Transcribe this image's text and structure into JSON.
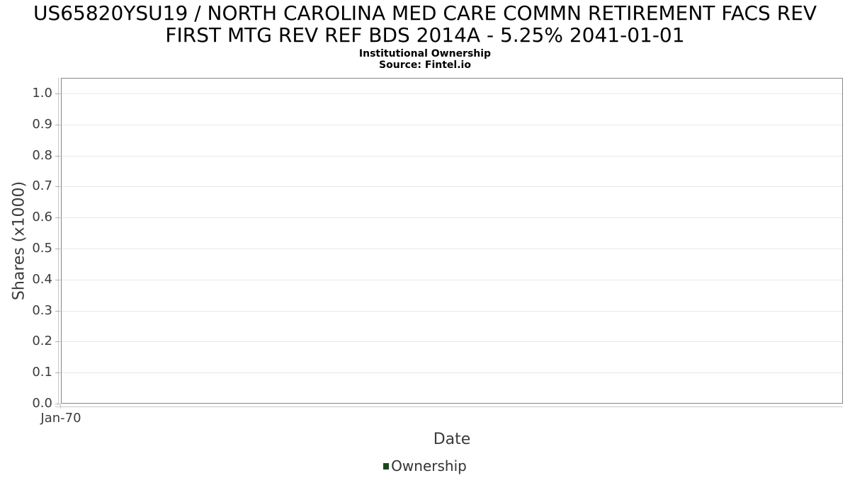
{
  "header": {
    "title_line1": "US65820YSU19 / NORTH CAROLINA MED CARE COMMN RETIREMENT FACS REV",
    "title_line2": "FIRST MTG REV REF BDS 2014A - 5.25% 2041-01-01",
    "subtitle": "Institutional Ownership",
    "source": "Source: Fintel.io"
  },
  "chart_data": {
    "type": "line",
    "title": "US65820YSU19 / NORTH CAROLINA MED CARE COMMN RETIREMENT FACS REV FIRST MTG REV REF BDS 2014A - 5.25% 2041-01-01",
    "subtitle": "Institutional Ownership",
    "source": "Source: Fintel.io",
    "xlabel": "Date",
    "ylabel": "Shares (x1000)",
    "x_tick_labels": [
      "Jan-70"
    ],
    "y_tick_labels": [
      "0.0",
      "0.1",
      "0.2",
      "0.3",
      "0.4",
      "0.5",
      "0.6",
      "0.7",
      "0.8",
      "0.9",
      "1.0"
    ],
    "ylim": [
      0.0,
      1.05
    ],
    "grid": true,
    "legend_position": "bottom-center",
    "series": [
      {
        "name": "Ownership",
        "color": "#1e4623",
        "x": [],
        "values": []
      }
    ]
  },
  "legend": {
    "items": [
      {
        "label": "Ownership",
        "color": "#1e4623"
      }
    ]
  },
  "colors": {
    "background": "#ffffff",
    "title_text": "#000000",
    "axis_text": "#3b3b3b",
    "plot_border": "#85878a",
    "gridline": "#e8e8e8",
    "tick_mark": "#b0b0b0",
    "axis_line": "#c8c8c8",
    "legend_marker": "#1e4623"
  }
}
